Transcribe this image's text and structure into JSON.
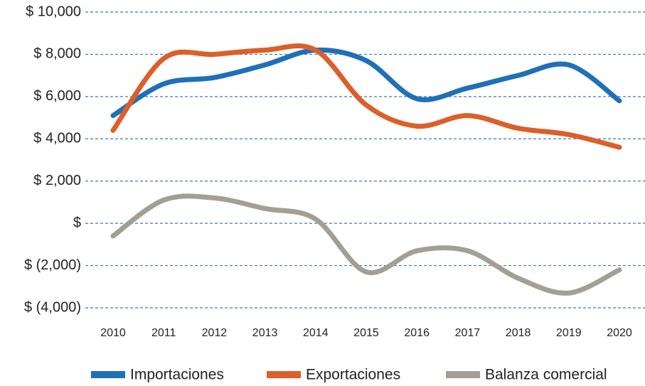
{
  "chart_data": {
    "type": "line",
    "categories": [
      "2010",
      "2011",
      "2012",
      "2013",
      "2014",
      "2015",
      "2016",
      "2017",
      "2018",
      "2019",
      "2020"
    ],
    "series": [
      {
        "name": "Importaciones",
        "color": "#1f70b8",
        "values": [
          5100,
          6600,
          6900,
          7500,
          8200,
          7700,
          5900,
          6400,
          7000,
          7500,
          5800
        ]
      },
      {
        "name": "Exportaciones",
        "color": "#dc5f2a",
        "values": [
          4400,
          7800,
          8000,
          8200,
          8200,
          5600,
          4600,
          5100,
          4500,
          4200,
          3600
        ]
      },
      {
        "name": "Balanza comercial",
        "color": "#a39f94",
        "values": [
          -600,
          1100,
          1200,
          700,
          200,
          -2300,
          -1300,
          -1300,
          -2600,
          -3300,
          -2200
        ]
      }
    ],
    "ylim": [
      -4000,
      10000
    ],
    "yticks": [
      {
        "value": -4000,
        "label": "$ (4,000)"
      },
      {
        "value": -2000,
        "label": "$ (2,000)"
      },
      {
        "value": 0,
        "label": "$"
      },
      {
        "value": 2000,
        "label": "$ 2,000"
      },
      {
        "value": 4000,
        "label": "$ 4,000"
      },
      {
        "value": 6000,
        "label": "$ 6,000"
      },
      {
        "value": 8000,
        "label": "$ 8,000"
      },
      {
        "value": 10000,
        "label": "$ 10,000"
      }
    ],
    "grid": true,
    "legend": "bottom"
  }
}
